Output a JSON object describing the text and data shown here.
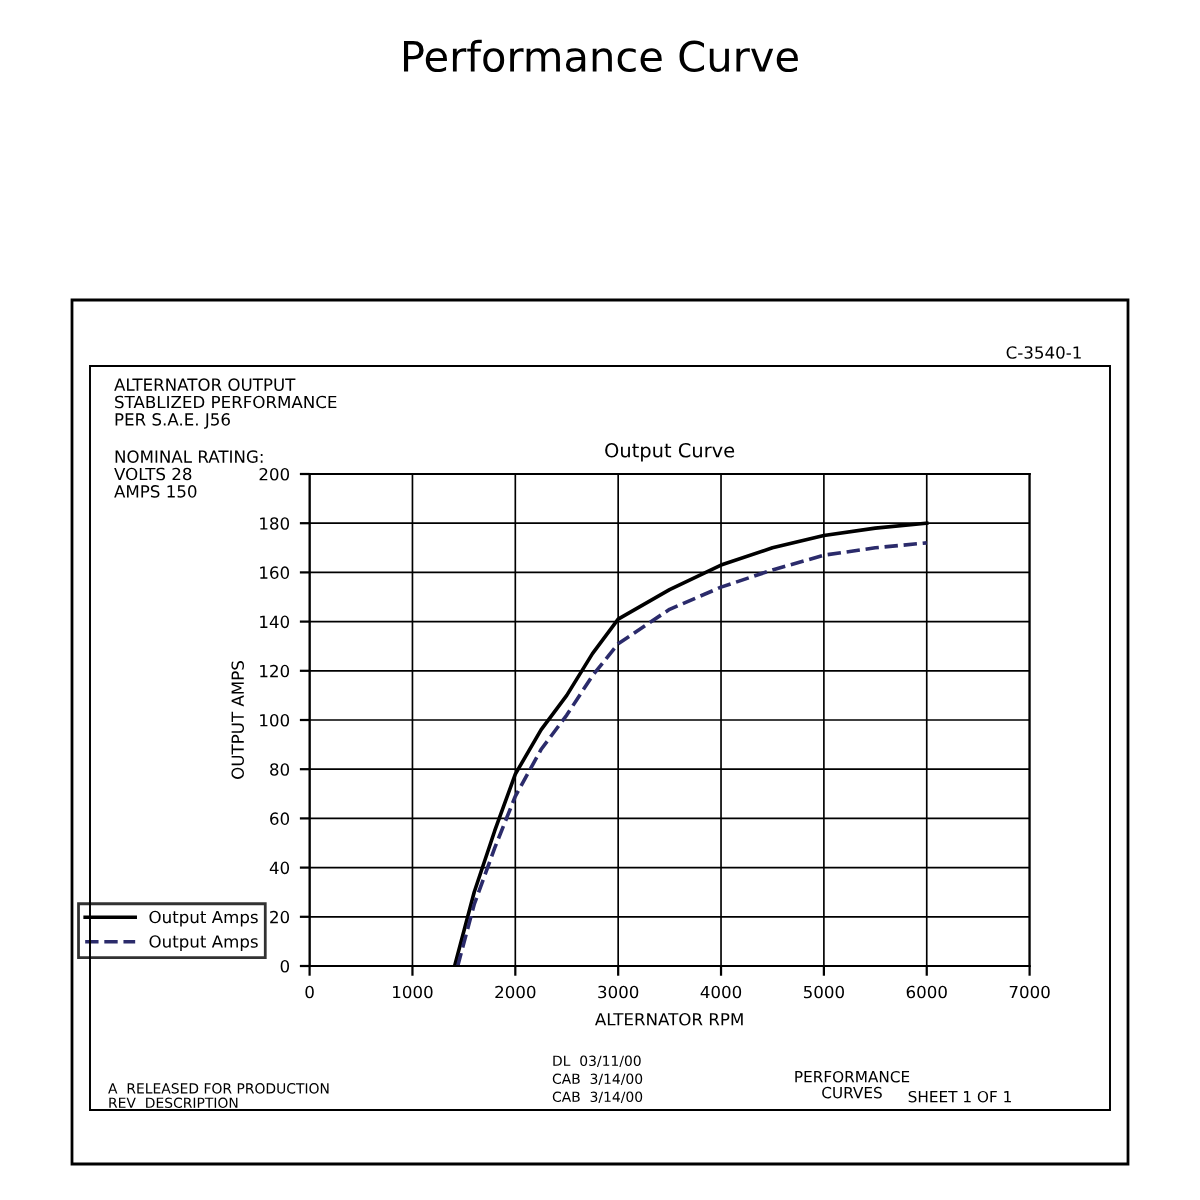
{
  "chart_data": {
    "type": "line",
    "title": "Performance Curve",
    "subtitle": "Output Curve",
    "xlabel": "ALTERNATOR RPM",
    "ylabel": "OUTPUT AMPS",
    "series": [
      {
        "name": "Output Amps",
        "color": "#000000",
        "line_style": "solid",
        "x": [
          1410,
          1600,
          1800,
          2000,
          2250,
          2500,
          2750,
          3000,
          3500,
          4000,
          4500,
          5000,
          5500,
          6000
        ],
        "values": [
          0,
          30,
          55,
          78,
          96,
          110,
          127,
          141,
          153,
          163,
          170,
          175,
          178,
          180
        ]
      },
      {
        "name": "Output Amps",
        "color": "#2b2b6b",
        "line_style": "dashed",
        "x": [
          1440,
          1600,
          1800,
          2000,
          2250,
          2500,
          2750,
          3000,
          3500,
          4000,
          4500,
          5000,
          5500,
          6000
        ],
        "values": [
          0,
          25,
          48,
          69,
          88,
          102,
          118,
          131,
          145,
          154,
          161,
          167,
          170,
          172
        ]
      }
    ],
    "xlim": [
      0,
      7000
    ],
    "xticks": [
      0,
      1000,
      2000,
      3000,
      4000,
      5000,
      6000,
      7000
    ],
    "ylim": [
      0,
      200
    ],
    "yticks": [
      0,
      20,
      40,
      60,
      80,
      100,
      120,
      140,
      160,
      180,
      200
    ],
    "grid": true,
    "legend": "bottom left",
    "marker": "none",
    "annotations": [
      "ALTERNATOR OUTPUT\nSTABLIZED PERFORMANCE\nPER S.A.E. J56",
      "NOMINAL RATING:\nVOLTS 28\nAMPS 150",
      "C-3540-1",
      "PERFORMANCE\nCURVES",
      "SHEET 1 OF 1",
      "A  RELEASED FOR PRODUCTION",
      "REV  DESCRIPTION",
      "DL  03/11/00",
      "CAB  3/14/00",
      "CAB  3/14/00"
    ]
  }
}
